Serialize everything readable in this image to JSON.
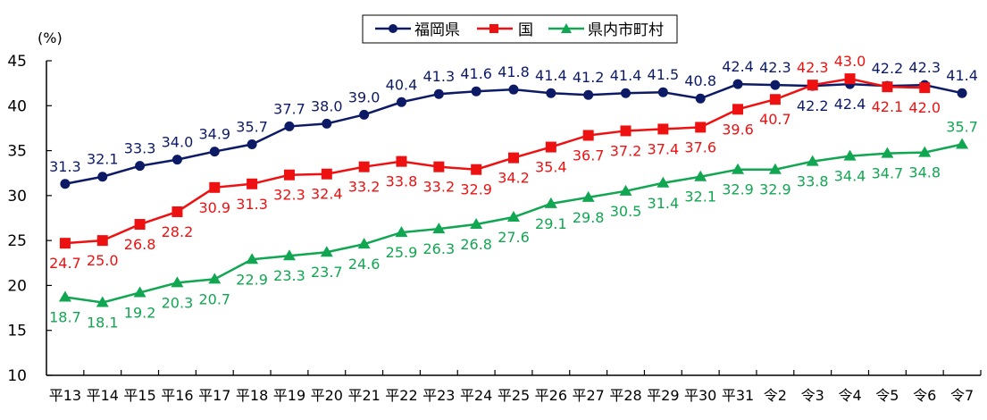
{
  "chart_data": {
    "type": "line",
    "title": "",
    "xlabel": "",
    "ylabel": "(%)",
    "ylim": [
      10,
      45
    ],
    "yticks": [
      10,
      15,
      20,
      25,
      30,
      35,
      40,
      45
    ],
    "grid": false,
    "legend_position": "top-center",
    "categories": [
      "平13",
      "平14",
      "平15",
      "平16",
      "平17",
      "平18",
      "平19",
      "平20",
      "平21",
      "平22",
      "平23",
      "平24",
      "平25",
      "平26",
      "平27",
      "平28",
      "平29",
      "平30",
      "平31",
      "令2",
      "令3",
      "令4",
      "令5",
      "令6",
      "令7"
    ],
    "series": [
      {
        "name": "福岡県",
        "color": "#0d1a66",
        "marker": "circle",
        "values": [
          31.3,
          32.1,
          33.3,
          34.0,
          34.9,
          35.7,
          37.7,
          38.0,
          39.0,
          40.4,
          41.3,
          41.6,
          41.8,
          41.4,
          41.2,
          41.4,
          41.5,
          40.8,
          42.4,
          42.3,
          42.2,
          42.4,
          42.2,
          42.3,
          41.4
        ],
        "label_pos": [
          "above",
          "above",
          "above",
          "above",
          "above",
          "above",
          "above",
          "above",
          "above",
          "above",
          "above",
          "above",
          "above",
          "above",
          "above",
          "above",
          "above",
          "above",
          "above",
          "above",
          "below",
          "below",
          "above",
          "above",
          "above"
        ]
      },
      {
        "name": "国",
        "color": "#ee1111",
        "marker": "square",
        "values": [
          24.7,
          25.0,
          26.8,
          28.2,
          30.9,
          31.3,
          32.3,
          32.4,
          33.2,
          33.8,
          33.2,
          32.9,
          34.2,
          35.4,
          36.7,
          37.2,
          37.4,
          37.6,
          39.6,
          40.7,
          42.3,
          43.0,
          42.1,
          42.0,
          null
        ],
        "label_pos": [
          "below",
          "below",
          "below",
          "below",
          "below",
          "below",
          "below",
          "below",
          "below",
          "below",
          "below",
          "below",
          "below",
          "below",
          "below",
          "below",
          "below",
          "below",
          "below",
          "below",
          "above",
          "above",
          "below",
          "below",
          "below"
        ]
      },
      {
        "name": "県内市町村",
        "color": "#11a651",
        "marker": "triangle",
        "values": [
          18.7,
          18.1,
          19.2,
          20.3,
          20.7,
          22.9,
          23.3,
          23.7,
          24.6,
          25.9,
          26.3,
          26.8,
          27.6,
          29.1,
          29.8,
          30.5,
          31.4,
          32.1,
          32.9,
          32.9,
          33.8,
          34.4,
          34.7,
          34.8,
          35.7
        ],
        "label_pos": [
          "below",
          "below",
          "below",
          "below",
          "below",
          "below",
          "below",
          "below",
          "below",
          "below",
          "below",
          "below",
          "below",
          "below",
          "below",
          "below",
          "below",
          "below",
          "below",
          "below",
          "below",
          "below",
          "below",
          "below",
          "above"
        ]
      }
    ]
  },
  "legend": {
    "items": [
      {
        "label": "福岡県"
      },
      {
        "label": "国"
      },
      {
        "label": "県内市町村"
      }
    ]
  },
  "axis": {
    "unit_label": "(%)"
  }
}
